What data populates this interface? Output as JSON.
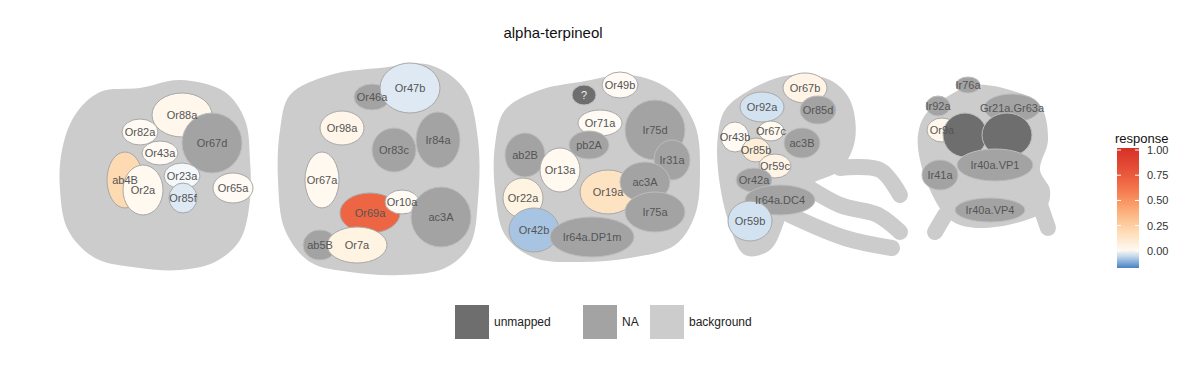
{
  "chart_data": {
    "type": "glomerular_map",
    "title": "alpha-terpineol",
    "colorbar": {
      "title": "response",
      "range": [
        -0.17,
        1.02
      ],
      "midpoint": 0,
      "ticks": [
        {
          "value": 0,
          "label": "0.00"
        },
        {
          "value": 0.25,
          "label": "0.25"
        },
        {
          "value": 0.5,
          "label": "0.50"
        },
        {
          "value": 0.75,
          "label": "0.75"
        },
        {
          "value": 1,
          "label": "1.00"
        }
      ]
    },
    "key": [
      {
        "name": "unmapped",
        "color": "#6e6e6e"
      },
      {
        "name": "NA",
        "color": "#a3a3a3"
      },
      {
        "name": "background",
        "color": "#cccccc"
      }
    ],
    "panels": [
      {
        "glomeruli": [
          {
            "label": "Or88a",
            "value": 0.02
          },
          {
            "label": "Or82a",
            "value": 0
          },
          {
            "label": "Or67d",
            "value": null,
            "status": "NA"
          },
          {
            "label": "Or43a",
            "value": 0
          },
          {
            "label": "ab4B",
            "value": 0.2
          },
          {
            "label": "Or23a",
            "value": -0.01
          },
          {
            "label": "Or2a",
            "value": 0.01
          },
          {
            "label": "Or85f",
            "value": -0.03
          },
          {
            "label": "Or65a",
            "value": 0
          }
        ]
      },
      {
        "glomeruli": [
          {
            "label": "Or46a",
            "value": null,
            "status": "NA"
          },
          {
            "label": "Or47b",
            "value": -0.03
          },
          {
            "label": "Or98a",
            "value": 0.03
          },
          {
            "label": "Or83c",
            "value": null,
            "status": "NA"
          },
          {
            "label": "Ir84a",
            "value": null,
            "status": "NA"
          },
          {
            "label": "Or67a",
            "value": 0.01
          },
          {
            "label": "Or69a",
            "value": 0.7
          },
          {
            "label": "Or10a",
            "value": 0
          },
          {
            "label": "ac3A",
            "value": null,
            "status": "NA"
          },
          {
            "label": "ab5B",
            "value": null,
            "status": "NA"
          },
          {
            "label": "Or7a",
            "value": 0.05
          }
        ]
      },
      {
        "glomeruli": [
          {
            "label": "?",
            "value": null,
            "status": "unmapped"
          },
          {
            "label": "Or49b",
            "value": 0
          },
          {
            "label": "Or71a",
            "value": 0
          },
          {
            "label": "Ir75d",
            "value": null,
            "status": "NA"
          },
          {
            "label": "ab2B",
            "value": null,
            "status": "NA"
          },
          {
            "label": "pb2A",
            "value": null,
            "status": "NA"
          },
          {
            "label": "Ir31a",
            "value": null,
            "status": "NA"
          },
          {
            "label": "Or13a",
            "value": 0.01
          },
          {
            "label": "Or19a",
            "value": 0.15
          },
          {
            "label": "ac3A",
            "value": null,
            "status": "NA"
          },
          {
            "label": "Or22a",
            "value": 0.05
          },
          {
            "label": "Ir75a",
            "value": null,
            "status": "NA"
          },
          {
            "label": "Or42b",
            "value": -0.08
          },
          {
            "label": "Ir64a.DP1m",
            "value": null,
            "status": "NA"
          }
        ]
      },
      {
        "glomeruli": [
          {
            "label": "Or67b",
            "value": 0.04
          },
          {
            "label": "Or92a",
            "value": -0.04
          },
          {
            "label": "Or85d",
            "value": null,
            "status": "NA"
          },
          {
            "label": "Or43b",
            "value": 0
          },
          {
            "label": "Or67c",
            "value": 0.01
          },
          {
            "label": "ac3B",
            "value": null,
            "status": "NA"
          },
          {
            "label": "Or85b",
            "value": 0.08
          },
          {
            "label": "Or59c",
            "value": 0.04
          },
          {
            "label": "Or42a",
            "value": null,
            "status": "NA"
          },
          {
            "label": "Ir64a.DC4",
            "value": null,
            "status": "NA"
          },
          {
            "label": "Or59b",
            "value": -0.04
          }
        ]
      },
      {
        "glomeruli": [
          {
            "label": "Or9a",
            "value": 0.02
          },
          {
            "label": "Ir92a",
            "value": null,
            "status": "NA"
          },
          {
            "label": "Ir76a",
            "value": null,
            "status": "NA"
          },
          {
            "label": "Gr21a.Gr63a",
            "value": null,
            "status": "NA"
          },
          {
            "label": null,
            "value": null,
            "status": "unmapped"
          },
          {
            "label": null,
            "value": null,
            "status": "unmapped"
          },
          {
            "label": "Ir41a",
            "value": null,
            "status": "NA"
          },
          {
            "label": "Ir40a.VP1",
            "value": null,
            "status": "NA"
          },
          {
            "label": "Ir40a.VP4",
            "value": null,
            "status": "NA"
          }
        ]
      }
    ]
  }
}
